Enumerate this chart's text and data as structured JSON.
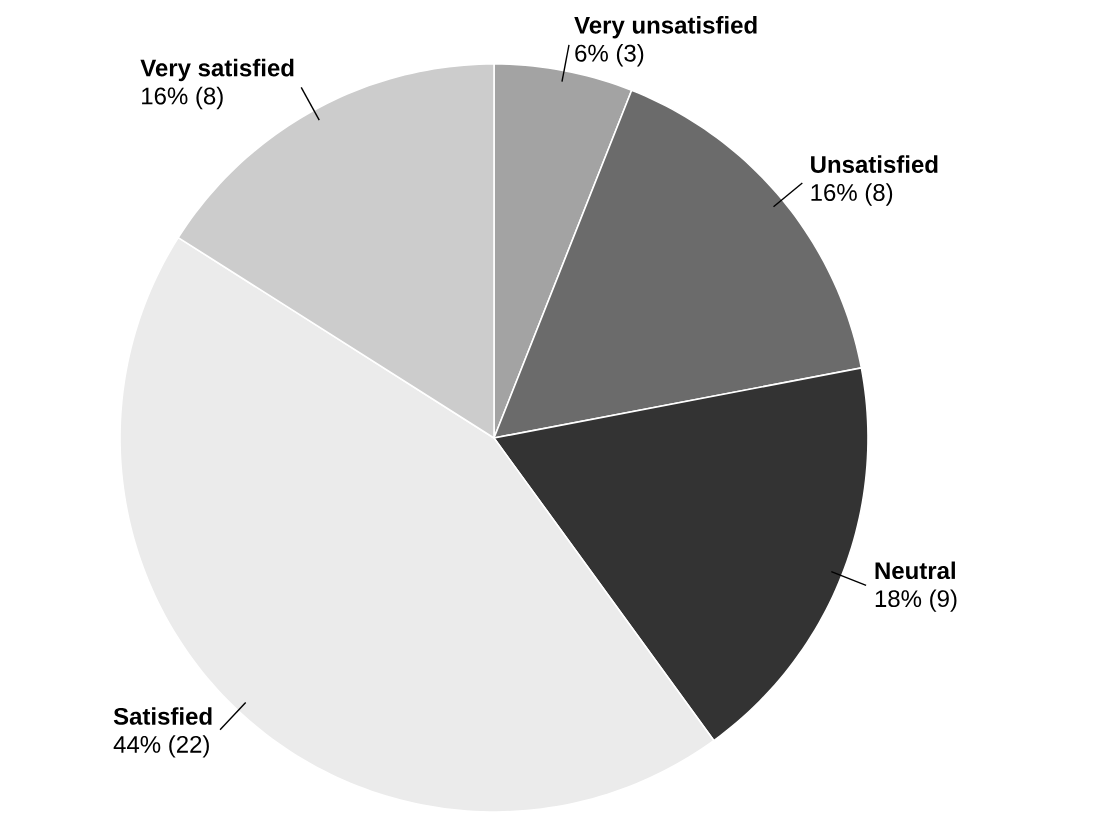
{
  "chart_data": {
    "type": "pie",
    "categories": [
      "Very unsatisfied",
      "Unsatisfied",
      "Neutral",
      "Satisfied",
      "Very satisfied"
    ],
    "values": [
      3,
      8,
      9,
      22,
      8
    ],
    "value_labels": [
      "6% (3)",
      "16% (8)",
      "18% (9)",
      "44% (22)",
      "16% (8)"
    ],
    "colors": [
      "#a3a3a3",
      "#6b6b6b",
      "#333333",
      "#ebebeb",
      "#cccccc"
    ]
  }
}
